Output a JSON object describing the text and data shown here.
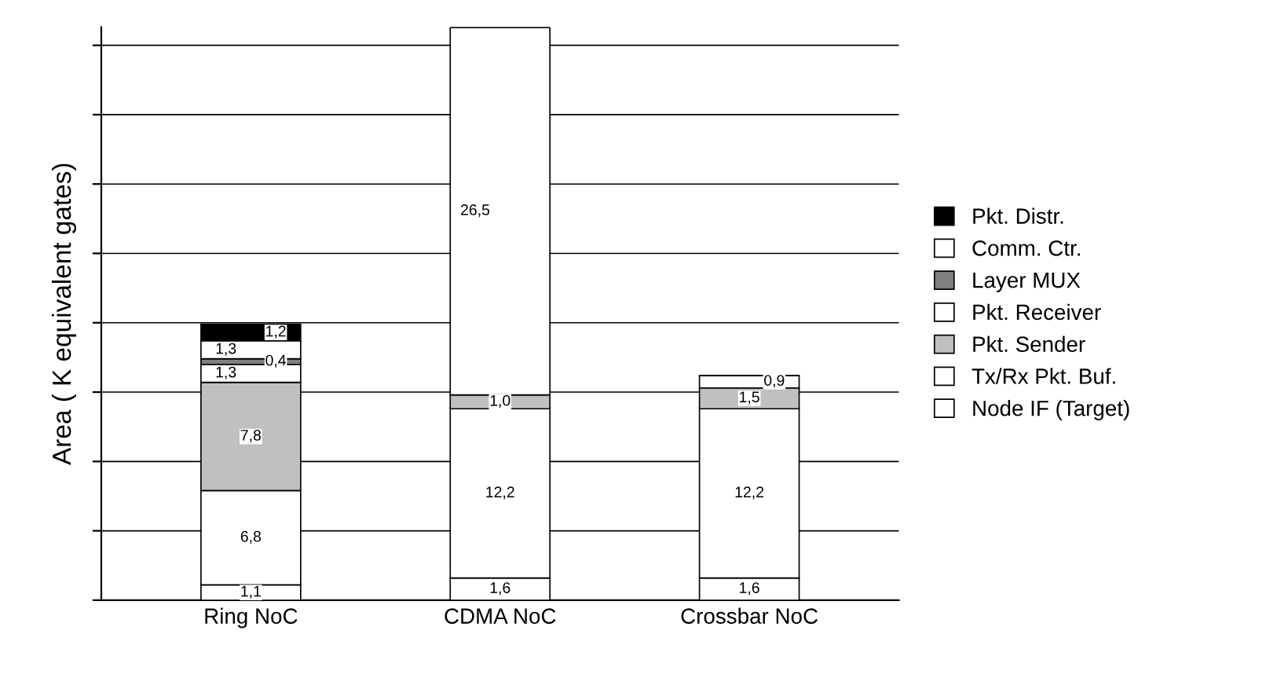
{
  "chart_data": {
    "type": "bar",
    "stacked": true,
    "ylabel": "Area ( K equivalent gates)",
    "categories": [
      "Ring NoC",
      "CDMA NoC",
      "Crossbar NoC"
    ],
    "grid": "y",
    "legend": "right",
    "tick_labels": "x",
    "series": [
      {
        "name": "Node IF (Target)",
        "color": "#ffffff",
        "values": [
          1.1,
          1.6,
          1.6
        ],
        "value_labels": [
          "1,1",
          "1,6",
          "1,6"
        ]
      },
      {
        "name": "Tx/Rx Pkt. Buf.",
        "color": "#ffffff",
        "values": [
          6.8,
          12.2,
          12.2
        ],
        "value_labels": [
          "6,8",
          "12,2",
          "12,2"
        ]
      },
      {
        "name": "Pkt. Sender",
        "color": "#c0c0c0",
        "values": [
          7.8,
          1.0,
          1.5
        ],
        "value_labels": [
          "7,8",
          "1,0",
          "1,5"
        ]
      },
      {
        "name": "Pkt. Receiver",
        "color": "#ffffff",
        "values": [
          1.3,
          26.5,
          0.9
        ],
        "value_labels": [
          "1,3",
          "26,5",
          "0,9"
        ]
      },
      {
        "name": "Layer MUX",
        "color": "#808080",
        "values": [
          0.4,
          null,
          null
        ],
        "value_labels": [
          "0,4",
          null,
          null
        ]
      },
      {
        "name": "Comm. Ctr.",
        "color": "#ffffff",
        "values": [
          1.3,
          null,
          null
        ],
        "value_labels": [
          "1,3",
          null,
          null
        ]
      },
      {
        "name": "Pkt. Distr.",
        "color": "#000000",
        "values": [
          1.2,
          null,
          null
        ],
        "value_labels": [
          "1,2",
          null,
          null
        ]
      }
    ]
  }
}
